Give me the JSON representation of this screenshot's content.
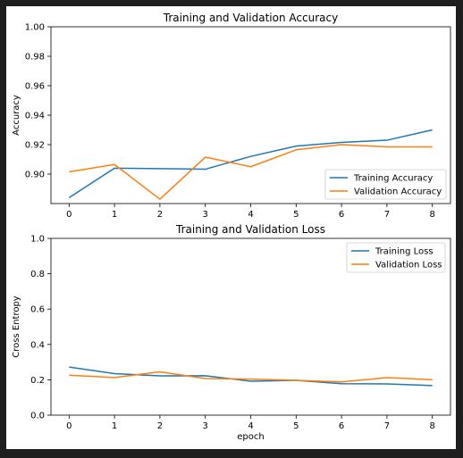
{
  "chart_data": [
    {
      "type": "line",
      "title": "Training and Validation Accuracy",
      "xlabel": "",
      "ylabel": "Accuracy",
      "x": [
        0,
        1,
        2,
        3,
        4,
        5,
        6,
        7,
        8
      ],
      "xticks": [
        "0",
        "1",
        "2",
        "3",
        "4",
        "5",
        "6",
        "7",
        "8"
      ],
      "xlim": [
        -0.4,
        8.4
      ],
      "ylim": [
        0.88,
        1.0
      ],
      "yticks": [
        "0.90",
        "0.92",
        "0.94",
        "0.96",
        "0.98",
        "1.00"
      ],
      "ytick_values": [
        0.9,
        0.92,
        0.94,
        0.96,
        0.98,
        1.0
      ],
      "legend_position": "lower-right",
      "grid": false,
      "series": [
        {
          "name": "Training Accuracy",
          "color": "#1f77b4",
          "values": [
            0.884,
            0.904,
            0.9037,
            0.9033,
            0.912,
            0.919,
            0.9215,
            0.923,
            0.93
          ]
        },
        {
          "name": "Validation Accuracy",
          "color": "#ff7f0e",
          "values": [
            0.9015,
            0.9065,
            0.883,
            0.9115,
            0.905,
            0.9165,
            0.92,
            0.9185,
            0.9185
          ]
        }
      ]
    },
    {
      "type": "line",
      "title": "Training and Validation Loss",
      "xlabel": "epoch",
      "ylabel": "Cross Entropy",
      "x": [
        0,
        1,
        2,
        3,
        4,
        5,
        6,
        7,
        8
      ],
      "xticks": [
        "0",
        "1",
        "2",
        "3",
        "4",
        "5",
        "6",
        "7",
        "8"
      ],
      "xlim": [
        -0.4,
        8.4
      ],
      "ylim": [
        0.0,
        1.0
      ],
      "yticks": [
        "0.0",
        "0.2",
        "0.4",
        "0.6",
        "0.8",
        "1.0"
      ],
      "ytick_values": [
        0.0,
        0.2,
        0.4,
        0.6,
        0.8,
        1.0
      ],
      "legend_position": "upper-right",
      "grid": false,
      "series": [
        {
          "name": "Training Loss",
          "color": "#1f77b4",
          "values": [
            0.272,
            0.235,
            0.222,
            0.223,
            0.192,
            0.197,
            0.178,
            0.177,
            0.167
          ]
        },
        {
          "name": "Validation Loss",
          "color": "#ff7f0e",
          "values": [
            0.226,
            0.213,
            0.245,
            0.207,
            0.204,
            0.197,
            0.188,
            0.212,
            0.201
          ]
        }
      ]
    }
  ]
}
